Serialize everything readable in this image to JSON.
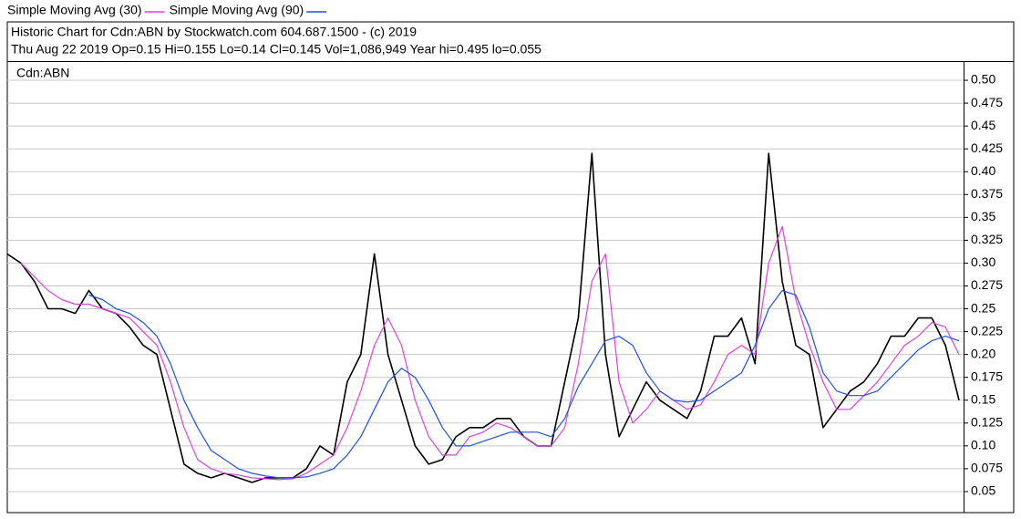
{
  "chart_data": {
    "type": "line",
    "title": "Historic Chart for Cdn:ABN by Stockwatch.com 604.687.1500 - (c) 2019",
    "subtitle": "Thu Aug 22 2019  Op=0.15  Hi=0.155  Lo=0.14  Cl=0.145  Vol=1,086,949  Year hi=0.495  lo=0.055",
    "ylim": [
      0.027,
      0.52
    ],
    "yticks": [
      0.05,
      0.075,
      {
        "value": 0.1,
        "label": "0.10"
      },
      0.125,
      0.15,
      0.175,
      {
        "value": 0.2,
        "label": "0.20"
      },
      0.225,
      0.25,
      0.275,
      {
        "value": 0.3,
        "label": "0.30"
      },
      0.325,
      0.35,
      0.375,
      {
        "value": 0.4,
        "label": "0.40"
      },
      0.425,
      0.45,
      0.475,
      {
        "value": 0.5,
        "label": "0.50"
      }
    ],
    "grid": true,
    "series": [
      {
        "name": "Cdn:ABN",
        "color": "#000000",
        "values": [
          0.31,
          0.3,
          0.28,
          0.25,
          0.25,
          0.245,
          0.27,
          0.25,
          0.245,
          0.23,
          0.21,
          0.2,
          0.14,
          0.08,
          0.07,
          0.065,
          0.07,
          0.065,
          0.06,
          0.065,
          0.065,
          0.065,
          0.075,
          0.1,
          0.09,
          0.17,
          0.2,
          0.31,
          0.2,
          0.15,
          0.1,
          0.08,
          0.085,
          0.11,
          0.12,
          0.12,
          0.13,
          0.13,
          0.11,
          0.1,
          0.1,
          0.17,
          0.24,
          0.42,
          0.2,
          0.11,
          0.14,
          0.17,
          0.15,
          0.14,
          0.13,
          0.16,
          0.22,
          0.22,
          0.24,
          0.19,
          0.42,
          0.28,
          0.21,
          0.2,
          0.12,
          0.14,
          0.16,
          0.17,
          0.19,
          0.22,
          0.22,
          0.24,
          0.24,
          0.21,
          0.15
        ]
      },
      {
        "name": "Simple Moving Avg (30)",
        "color": "#e040e0",
        "values": [
          null,
          0.3,
          0.285,
          0.27,
          0.26,
          0.255,
          0.255,
          0.25,
          0.245,
          0.24,
          0.225,
          0.21,
          0.17,
          0.12,
          0.085,
          0.075,
          0.07,
          0.068,
          0.065,
          0.064,
          0.063,
          0.064,
          0.07,
          0.08,
          0.09,
          0.12,
          0.16,
          0.21,
          0.24,
          0.21,
          0.15,
          0.11,
          0.09,
          0.09,
          0.11,
          0.115,
          0.125,
          0.12,
          0.11,
          0.1,
          0.1,
          0.12,
          0.19,
          0.28,
          0.31,
          0.17,
          0.125,
          0.14,
          0.16,
          0.15,
          0.14,
          0.145,
          0.17,
          0.2,
          0.21,
          0.2,
          0.3,
          0.34,
          0.26,
          0.21,
          0.17,
          0.14,
          0.14,
          0.155,
          0.17,
          0.19,
          0.21,
          0.22,
          0.235,
          0.23,
          0.2
        ]
      },
      {
        "name": "Simple Moving Avg (90)",
        "color": "#2050e0",
        "values": [
          null,
          null,
          null,
          null,
          null,
          null,
          0.265,
          0.26,
          0.25,
          0.245,
          0.235,
          0.22,
          0.19,
          0.15,
          0.12,
          0.095,
          0.085,
          0.075,
          0.07,
          0.067,
          0.065,
          0.065,
          0.066,
          0.07,
          0.075,
          0.09,
          0.11,
          0.14,
          0.17,
          0.185,
          0.175,
          0.15,
          0.12,
          0.1,
          0.1,
          0.105,
          0.11,
          0.115,
          0.115,
          0.115,
          0.11,
          0.13,
          0.165,
          0.19,
          0.215,
          0.22,
          0.21,
          0.18,
          0.16,
          0.15,
          0.148,
          0.15,
          0.16,
          0.17,
          0.18,
          0.21,
          0.25,
          0.27,
          0.265,
          0.23,
          0.18,
          0.16,
          0.155,
          0.155,
          0.16,
          0.175,
          0.19,
          0.205,
          0.215,
          0.22,
          0.215
        ]
      }
    ]
  }
}
